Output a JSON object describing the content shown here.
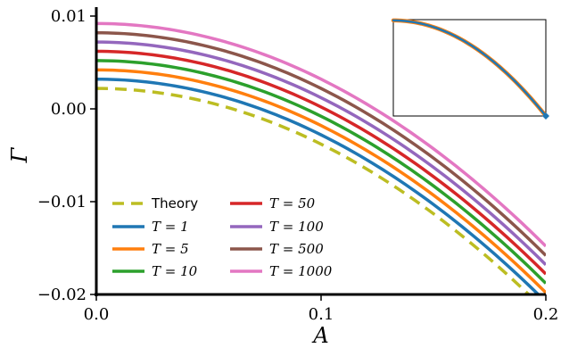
{
  "chart_data": {
    "type": "line",
    "xlabel": "A",
    "ylabel": "Γ",
    "xlim": [
      0.0,
      0.2
    ],
    "ylim": [
      -0.02,
      0.01
    ],
    "xticks": [
      0.0,
      0.1,
      0.2
    ],
    "xtick_labels": [
      "0.0",
      "0.1",
      "0.2"
    ],
    "yticks": [
      -0.02,
      -0.01,
      0.0,
      0.01
    ],
    "ytick_labels": [
      "−0.02",
      "−0.01",
      "0.00",
      "0.01"
    ],
    "grid": false,
    "legend_placement": "lower-left",
    "curve_shape": "y = offset - 0.6 * x^2",
    "series": [
      {
        "name": "Theory",
        "label_style": "text",
        "offset": 0.0022,
        "color": "#bcbd22",
        "dash": true
      },
      {
        "name": "T = 1",
        "label_style": "math",
        "offset": 0.0032,
        "color": "#1f77b4"
      },
      {
        "name": "T = 5",
        "label_style": "math",
        "offset": 0.0042,
        "color": "#ff7f0e"
      },
      {
        "name": "T = 10",
        "label_style": "math",
        "offset": 0.0052,
        "color": "#2ca02c"
      },
      {
        "name": "T = 50",
        "label_style": "math",
        "offset": 0.0062,
        "color": "#d62728"
      },
      {
        "name": "T = 100",
        "label_style": "math",
        "offset": 0.0072,
        "color": "#9467bd"
      },
      {
        "name": "T = 500",
        "label_style": "math",
        "offset": 0.0082,
        "color": "#8c564b"
      },
      {
        "name": "T = 1000",
        "label_style": "math",
        "offset": 0.0092,
        "color": "#e377c2"
      }
    ],
    "inset": {
      "series": [
        {
          "color": "#ff7f0e"
        },
        {
          "color": "#1f77b4"
        }
      ]
    }
  }
}
